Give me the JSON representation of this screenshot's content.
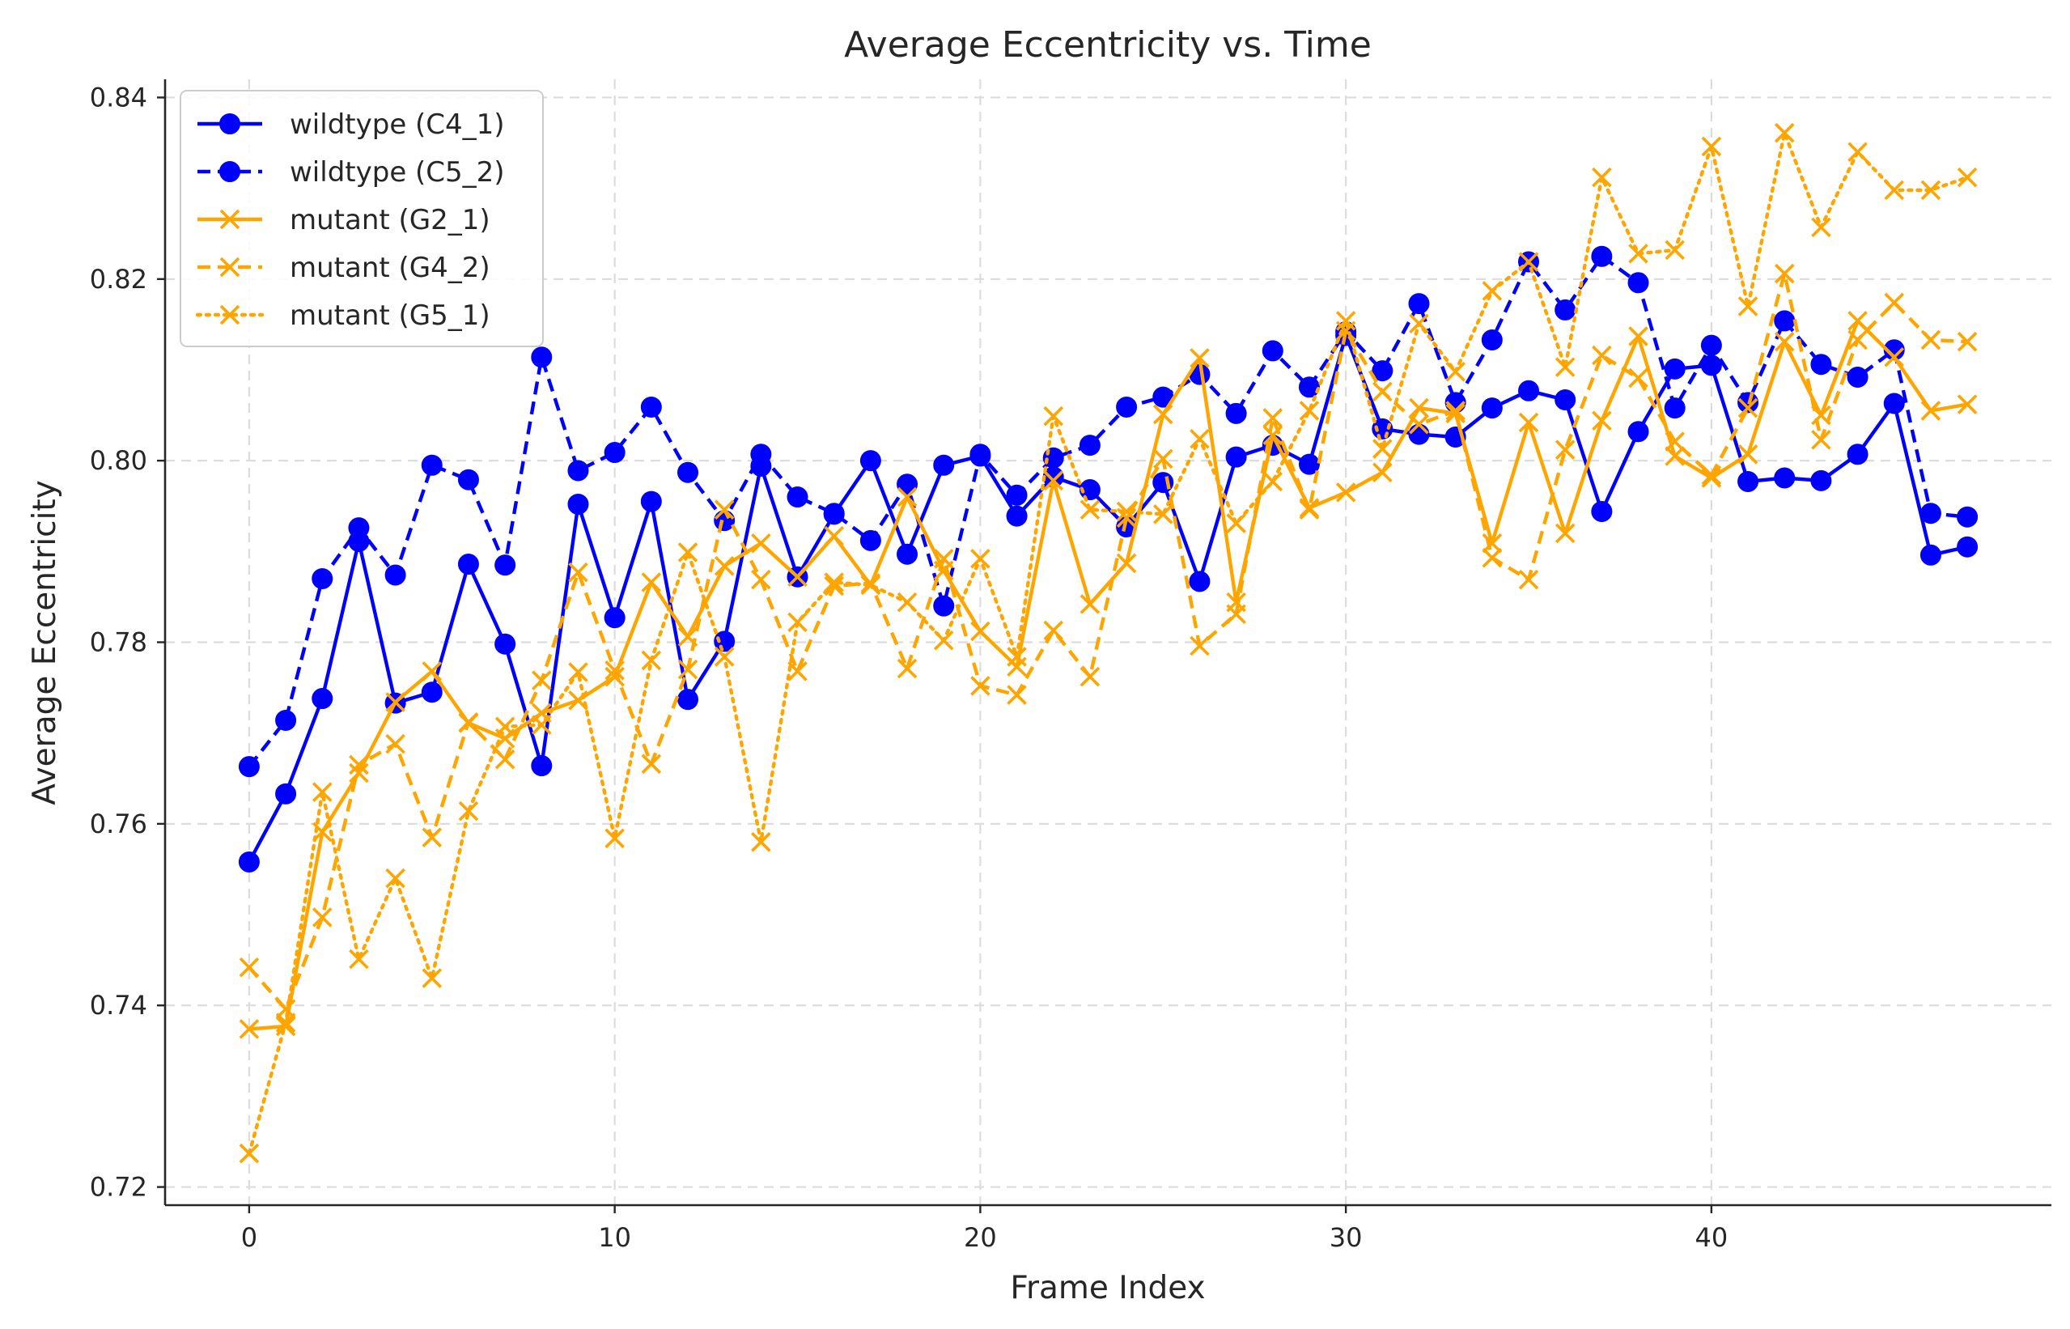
{
  "chart_data": {
    "type": "line",
    "title": "Average Eccentricity vs. Time",
    "xlabel": "Frame Index",
    "ylabel": "Average Eccentricity",
    "xlim": [
      -2.3,
      49.3
    ],
    "ylim": [
      0.718,
      0.842
    ],
    "xticks": [
      0,
      10,
      20,
      30,
      40
    ],
    "xtick_labels": [
      "0",
      "10",
      "20",
      "30",
      "40"
    ],
    "yticks": [
      0.72,
      0.74,
      0.76,
      0.78,
      0.8,
      0.82,
      0.84
    ],
    "ytick_labels": [
      "0.72",
      "0.74",
      "0.76",
      "0.78",
      "0.80",
      "0.82",
      "0.84"
    ],
    "grid": true,
    "legend_position": "top-left",
    "x": [
      0,
      1,
      2,
      3,
      4,
      5,
      6,
      7,
      8,
      9,
      10,
      11,
      12,
      13,
      14,
      15,
      16,
      17,
      18,
      19,
      20,
      21,
      22,
      23,
      24,
      25,
      26,
      27,
      28,
      29,
      30,
      31,
      32,
      33,
      34,
      35,
      36,
      37,
      38,
      39,
      40,
      41,
      42,
      43,
      44,
      45,
      46,
      47
    ],
    "series": [
      {
        "name": "wildtype (C4_1)",
        "color": "#0000ff",
        "line_style": "solid",
        "marker": "circle",
        "values": [
          0.7558,
          0.7633,
          0.7738,
          0.7911,
          0.7733,
          0.7745,
          0.7886,
          0.7798,
          0.7664,
          0.7952,
          0.7827,
          0.7955,
          0.7737,
          0.7801,
          0.7994,
          0.7872,
          0.7941,
          0.8,
          0.7897,
          0.7995,
          0.8005,
          0.7939,
          0.7982,
          0.7968,
          0.7927,
          0.7976,
          0.7867,
          0.8004,
          0.8017,
          0.7996,
          0.8138,
          0.8035,
          0.8029,
          0.8026,
          0.8058,
          0.8077,
          0.8067,
          0.7944,
          0.8032,
          0.8101,
          0.8105,
          0.7977,
          0.7981,
          0.7978,
          0.8007,
          0.8063,
          0.7896,
          0.7905
        ]
      },
      {
        "name": "wildtype (C5_2)",
        "color": "#0000ff",
        "line_style": "dashed",
        "marker": "circle",
        "values": [
          0.7663,
          0.7714,
          0.787,
          0.7926,
          0.7874,
          0.7995,
          0.7979,
          0.7885,
          0.8114,
          0.7989,
          0.8009,
          0.8059,
          0.7987,
          0.7934,
          0.8007,
          0.796,
          0.7942,
          0.7912,
          0.7974,
          0.784,
          0.8007,
          0.7962,
          0.8003,
          0.8017,
          0.8059,
          0.807,
          0.8095,
          0.8052,
          0.8121,
          0.8081,
          0.8142,
          0.8099,
          0.8173,
          0.8064,
          0.8133,
          0.8219,
          0.8166,
          0.8225,
          0.8196,
          0.8058,
          0.8127,
          0.8064,
          0.8154,
          0.8106,
          0.8092,
          0.8122,
          0.7942,
          0.7938
        ]
      },
      {
        "name": "mutant (G2_1)",
        "color": "#ffa500",
        "line_style": "solid",
        "marker": "x",
        "values": [
          0.7374,
          0.7377,
          0.7591,
          0.7656,
          0.7734,
          0.7768,
          0.7711,
          0.7694,
          0.7722,
          0.7736,
          0.7762,
          0.7866,
          0.7806,
          0.7884,
          0.7909,
          0.7872,
          0.7917,
          0.7863,
          0.796,
          0.7879,
          0.7812,
          0.7773,
          0.7978,
          0.7842,
          0.7887,
          0.8051,
          0.8113,
          0.7844,
          0.8028,
          0.7948,
          0.7965,
          0.7987,
          0.8058,
          0.8052,
          0.7909,
          0.8042,
          0.792,
          0.8044,
          0.8137,
          0.8005,
          0.7981,
          0.8007,
          0.8131,
          0.805,
          0.8154,
          0.8114,
          0.8055,
          0.8062
        ]
      },
      {
        "name": "mutant (G4_2)",
        "color": "#ffa500",
        "line_style": "dashed",
        "marker": "x",
        "values": [
          0.7442,
          0.7396,
          0.7497,
          0.7665,
          0.7688,
          0.7585,
          0.7712,
          0.7671,
          0.7758,
          0.7877,
          0.7769,
          0.7666,
          0.777,
          0.7946,
          0.7869,
          0.7768,
          0.7862,
          0.7865,
          0.7771,
          0.7892,
          0.7752,
          0.7742,
          0.7813,
          0.7762,
          0.7937,
          0.8002,
          0.7796,
          0.7831,
          0.8047,
          0.7946,
          0.8143,
          0.8076,
          0.804,
          0.8055,
          0.7893,
          0.7869,
          0.8012,
          0.8116,
          0.8091,
          0.8021,
          0.7984,
          0.8058,
          0.8206,
          0.8023,
          0.8133,
          0.8174,
          0.8133,
          0.8131
        ]
      },
      {
        "name": "mutant (G5_1)",
        "color": "#ffa500",
        "line_style": "dotted",
        "marker": "x",
        "values": [
          0.7237,
          0.7381,
          0.7635,
          0.7451,
          0.754,
          0.743,
          0.7614,
          0.7707,
          0.7709,
          0.7767,
          0.7584,
          0.778,
          0.7899,
          0.7784,
          0.758,
          0.7822,
          0.7866,
          0.7863,
          0.7844,
          0.7802,
          0.7892,
          0.7784,
          0.8049,
          0.7946,
          0.7944,
          0.7941,
          0.8024,
          0.7931,
          0.7977,
          0.8055,
          0.8154,
          0.8013,
          0.8151,
          0.8098,
          0.8187,
          0.8219,
          0.8103,
          0.8312,
          0.8228,
          0.8232,
          0.8346,
          0.817,
          0.8361,
          0.8257,
          0.834,
          0.8298,
          0.8298,
          0.8312
        ]
      }
    ]
  }
}
